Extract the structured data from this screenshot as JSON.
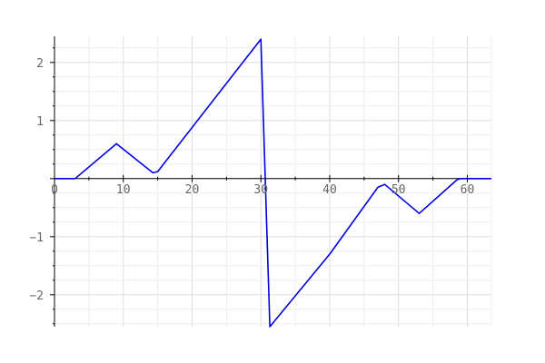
{
  "chart_data": {
    "type": "line",
    "title": "",
    "xlabel": "",
    "ylabel": "",
    "xlim": [
      0,
      63.5
    ],
    "ylim": [
      -2.55,
      2.45
    ],
    "grid": true,
    "legend": "none",
    "x_ticks": [
      0,
      10,
      20,
      30,
      40,
      50,
      60
    ],
    "x_tick_labels": [
      "0",
      "10",
      "20",
      "30",
      "40",
      "50",
      "60"
    ],
    "y_ticks": [
      -2,
      -1,
      1,
      2
    ],
    "y_tick_labels": [
      "−2",
      "−1",
      "1",
      "2"
    ],
    "series": [
      {
        "color": "#0000dd",
        "x": [
          0,
          3,
          9,
          14.3,
          15,
          30,
          31.3,
          40,
          47,
          48,
          53,
          58.5,
          59,
          63.5
        ],
        "y": [
          0,
          0,
          0.6,
          0.1,
          0.12,
          2.4,
          -2.55,
          -1.3,
          -0.15,
          -0.1,
          -0.6,
          -0.02,
          0,
          0
        ]
      }
    ]
  }
}
